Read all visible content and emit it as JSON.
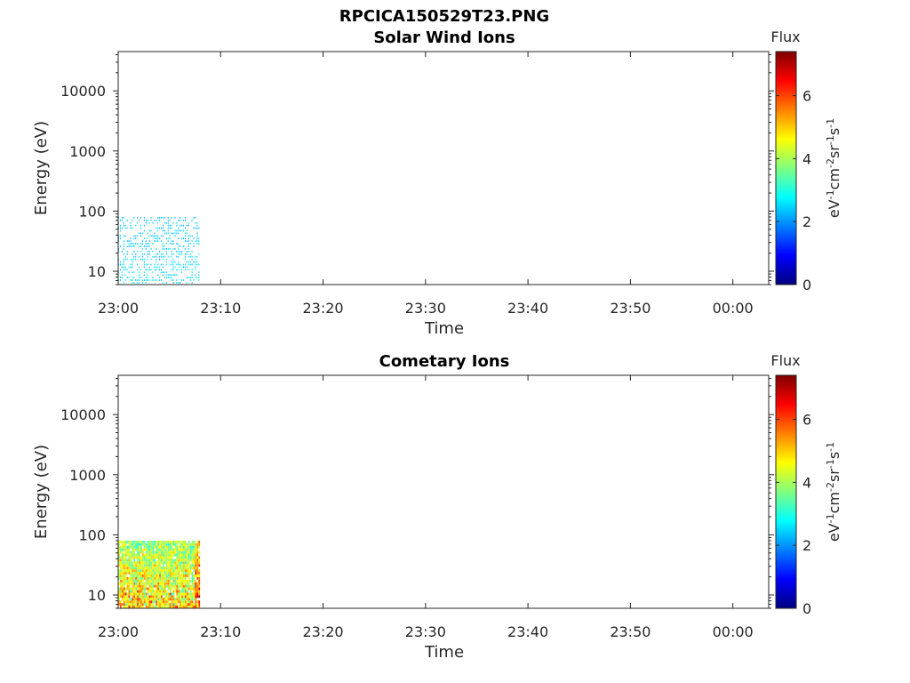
{
  "figure": {
    "title": "RPCICA150529T23.PNG"
  },
  "chart_data": [
    {
      "type": "heatmap",
      "title": "Solar Wind Ions",
      "xlabel": "Time",
      "ylabel": "Energy (eV)",
      "x_ticks": [
        "23:00",
        "23:10",
        "23:20",
        "23:30",
        "23:40",
        "23:50",
        "00:00"
      ],
      "y_ticks": [
        "10",
        "100",
        "1000",
        "10000"
      ],
      "y_scale": "log",
      "ylim": [
        6,
        45000
      ],
      "xlim_minutes": [
        0,
        63.5
      ],
      "colorbar": {
        "label": "Flux",
        "units": "eV-1cm-2sr-1s-1",
        "ticks": [
          "0",
          "2",
          "4",
          "6"
        ],
        "range": [
          0,
          7.4
        ],
        "colormap": "jet"
      },
      "data_extent": {
        "time_start": "23:00",
        "time_end": "23:08",
        "energy_min": 6,
        "energy_max": 80
      },
      "flux_level": "approx. 2-3 (cyan), sparse",
      "density": 0.42,
      "flux_range": [
        2.0,
        2.9
      ]
    },
    {
      "type": "heatmap",
      "title": "Cometary Ions",
      "xlabel": "Time",
      "ylabel": "Energy (eV)",
      "x_ticks": [
        "23:00",
        "23:10",
        "23:20",
        "23:30",
        "23:40",
        "23:50",
        "00:00"
      ],
      "y_ticks": [
        "10",
        "100",
        "1000",
        "10000"
      ],
      "y_scale": "log",
      "ylim": [
        6,
        45000
      ],
      "xlim_minutes": [
        0,
        63.5
      ],
      "colorbar": {
        "label": "Flux",
        "units": "eV-1cm-2sr-1s-1",
        "ticks": [
          "0",
          "2",
          "4",
          "6"
        ],
        "range": [
          0,
          7.4
        ],
        "colormap": "jet"
      },
      "data_extent": {
        "time_start": "23:00",
        "time_end": "23:08",
        "energy_min": 6,
        "energy_max": 80
      },
      "flux_level": "approx. 2.5-6.5 (cyan to red), dense, highest at low energy",
      "density": 0.95,
      "flux_range": [
        2.6,
        6.4
      ]
    }
  ]
}
